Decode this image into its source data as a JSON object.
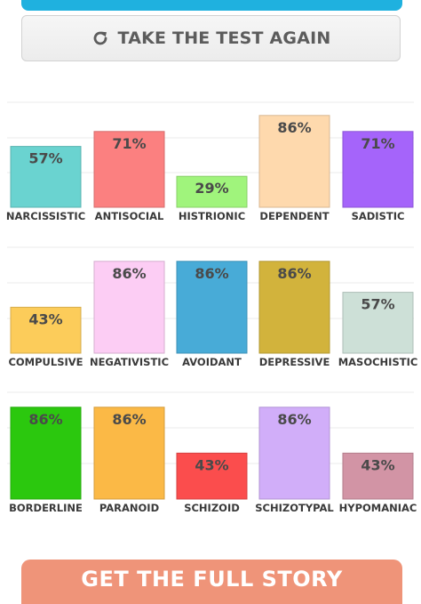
{
  "retake_button": {
    "label": "TAKE THE TEST AGAIN",
    "icon": "refresh-icon"
  },
  "cta_button": {
    "label": "GET THE FULL STORY"
  },
  "colors": {
    "accent_bar": "#1fb1df",
    "cta": "#ef9479"
  },
  "chart_data": [
    {
      "type": "bar",
      "categories": [
        "NARCISSISTIC",
        "ANTISOCIAL",
        "HISTRIONIC",
        "DEPENDENT",
        "SADISTIC"
      ],
      "values": [
        57,
        71,
        29,
        86,
        71
      ],
      "labels": [
        "57%",
        "71%",
        "29%",
        "86%",
        "71%"
      ],
      "colors": [
        "#6ad3d0",
        "#fb8080",
        "#a0f47c",
        "#fed9ad",
        "#a564fa"
      ],
      "ylim": [
        0,
        100
      ],
      "grid": true
    },
    {
      "type": "bar",
      "categories": [
        "COMPULSIVE",
        "NEGATIVISTIC",
        "AVOIDANT",
        "DEPRESSIVE",
        "MASOCHISTIC"
      ],
      "values": [
        43,
        86,
        86,
        86,
        57
      ],
      "labels": [
        "43%",
        "86%",
        "86%",
        "86%",
        "57%"
      ],
      "colors": [
        "#fccc5a",
        "#fccdf4",
        "#48abd7",
        "#d2b33c",
        "#cde0d7"
      ],
      "ylim": [
        0,
        100
      ],
      "grid": true
    },
    {
      "type": "bar",
      "categories": [
        "BORDERLINE",
        "PARANOID",
        "SCHIZOID",
        "SCHIZOTYPAL",
        "HYPOMANIAC"
      ],
      "values": [
        86,
        86,
        43,
        86,
        43
      ],
      "labels": [
        "86%",
        "86%",
        "43%",
        "86%",
        "43%"
      ],
      "colors": [
        "#2bc80e",
        "#fbb946",
        "#fb4d4d",
        "#d1aef9",
        "#d294a5"
      ],
      "ylim": [
        0,
        100
      ],
      "grid": true
    }
  ]
}
